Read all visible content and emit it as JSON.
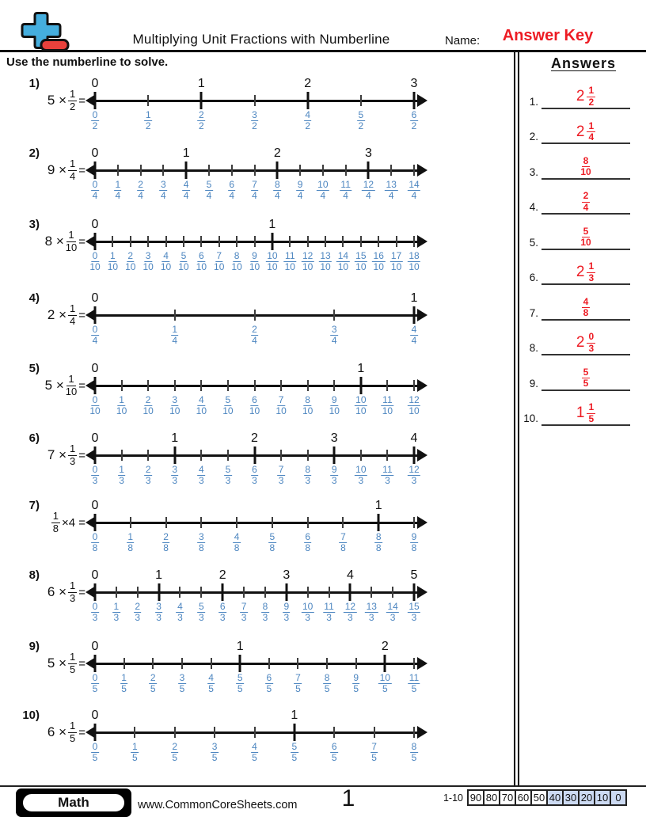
{
  "colors": {
    "answer_red": "#ed1c24",
    "fraction_blue": "#4d86c0",
    "score_fill": "#ccdaf2",
    "logo_blue": "#45aede",
    "logo_red": "#e8413c"
  },
  "header": {
    "title": "Multiplying Unit Fractions with Numberline",
    "name_label": "Name:",
    "answer_key": "Answer Key"
  },
  "instruction": "Use the numberline to solve.",
  "answers_panel": {
    "title": "Answers",
    "items": [
      {
        "label": "1.",
        "whole": "2",
        "num": "1",
        "den": "2"
      },
      {
        "label": "2.",
        "whole": "2",
        "num": "1",
        "den": "4"
      },
      {
        "label": "3.",
        "whole": "",
        "num": "8",
        "den": "10"
      },
      {
        "label": "4.",
        "whole": "",
        "num": "2",
        "den": "4"
      },
      {
        "label": "5.",
        "whole": "",
        "num": "5",
        "den": "10"
      },
      {
        "label": "6.",
        "whole": "2",
        "num": "1",
        "den": "3"
      },
      {
        "label": "7.",
        "whole": "",
        "num": "4",
        "den": "8"
      },
      {
        "label": "8.",
        "whole": "2",
        "num": "0",
        "den": "3"
      },
      {
        "label": "9.",
        "whole": "",
        "num": "5",
        "den": "5"
      },
      {
        "label": "10.",
        "whole": "1",
        "num": "1",
        "den": "5"
      }
    ]
  },
  "problems": [
    {
      "label": "1)",
      "eq_before": "5 ×",
      "eq_num": "1",
      "eq_den": "2",
      "eq_after": "=",
      "den": "2",
      "max_num": 6,
      "integers": [
        [
          0,
          "0"
        ],
        [
          2,
          "1"
        ],
        [
          4,
          "2"
        ],
        [
          6,
          "3"
        ]
      ]
    },
    {
      "label": "2)",
      "eq_before": "9 ×",
      "eq_num": "1",
      "eq_den": "4",
      "eq_after": "=",
      "den": "4",
      "max_num": 14,
      "integers": [
        [
          0,
          "0"
        ],
        [
          4,
          "1"
        ],
        [
          8,
          "2"
        ],
        [
          12,
          "3"
        ]
      ]
    },
    {
      "label": "3)",
      "eq_before": "8 ×",
      "eq_num": "1",
      "eq_den": "10",
      "eq_after": "=",
      "den": "10",
      "max_num": 18,
      "integers": [
        [
          0,
          "0"
        ],
        [
          10,
          "1"
        ]
      ]
    },
    {
      "label": "4)",
      "eq_before": "2 ×",
      "eq_num": "1",
      "eq_den": "4",
      "eq_after": "=",
      "den": "4",
      "max_num": 4,
      "integers": [
        [
          0,
          "0"
        ],
        [
          4,
          "1"
        ]
      ]
    },
    {
      "label": "5)",
      "eq_before": "5 ×",
      "eq_num": "1",
      "eq_den": "10",
      "eq_after": "=",
      "den": "10",
      "max_num": 12,
      "integers": [
        [
          0,
          "0"
        ],
        [
          10,
          "1"
        ]
      ]
    },
    {
      "label": "6)",
      "eq_before": "7 ×",
      "eq_num": "1",
      "eq_den": "3",
      "eq_after": "=",
      "den": "3",
      "max_num": 12,
      "integers": [
        [
          0,
          "0"
        ],
        [
          3,
          "1"
        ],
        [
          6,
          "2"
        ],
        [
          9,
          "3"
        ],
        [
          12,
          "4"
        ]
      ]
    },
    {
      "label": "7)",
      "eq_before": "",
      "eq_num": "1",
      "eq_den": "8",
      "eq_after": "×4 =",
      "den": "8",
      "max_num": 9,
      "integers": [
        [
          0,
          "0"
        ],
        [
          8,
          "1"
        ]
      ]
    },
    {
      "label": "8)",
      "eq_before": "6 ×",
      "eq_num": "1",
      "eq_den": "3",
      "eq_after": "=",
      "den": "3",
      "max_num": 15,
      "integers": [
        [
          0,
          "0"
        ],
        [
          3,
          "1"
        ],
        [
          6,
          "2"
        ],
        [
          9,
          "3"
        ],
        [
          12,
          "4"
        ],
        [
          15,
          "5"
        ]
      ]
    },
    {
      "label": "9)",
      "eq_before": "5 ×",
      "eq_num": "1",
      "eq_den": "5",
      "eq_after": "=",
      "den": "5",
      "max_num": 11,
      "integers": [
        [
          0,
          "0"
        ],
        [
          5,
          "1"
        ],
        [
          10,
          "2"
        ]
      ]
    },
    {
      "label": "10)",
      "eq_before": "6 ×",
      "eq_num": "1",
      "eq_den": "5",
      "eq_after": "=",
      "den": "5",
      "max_num": 8,
      "integers": [
        [
          0,
          "0"
        ],
        [
          5,
          "1"
        ]
      ]
    }
  ],
  "footer": {
    "brand": "Math",
    "website": "www.CommonCoreSheets.com",
    "page": "1",
    "range_label": "1-10",
    "scores": [
      "90",
      "80",
      "70",
      "60",
      "50",
      "40",
      "30",
      "20",
      "10",
      "0"
    ],
    "blue_from": 5
  }
}
